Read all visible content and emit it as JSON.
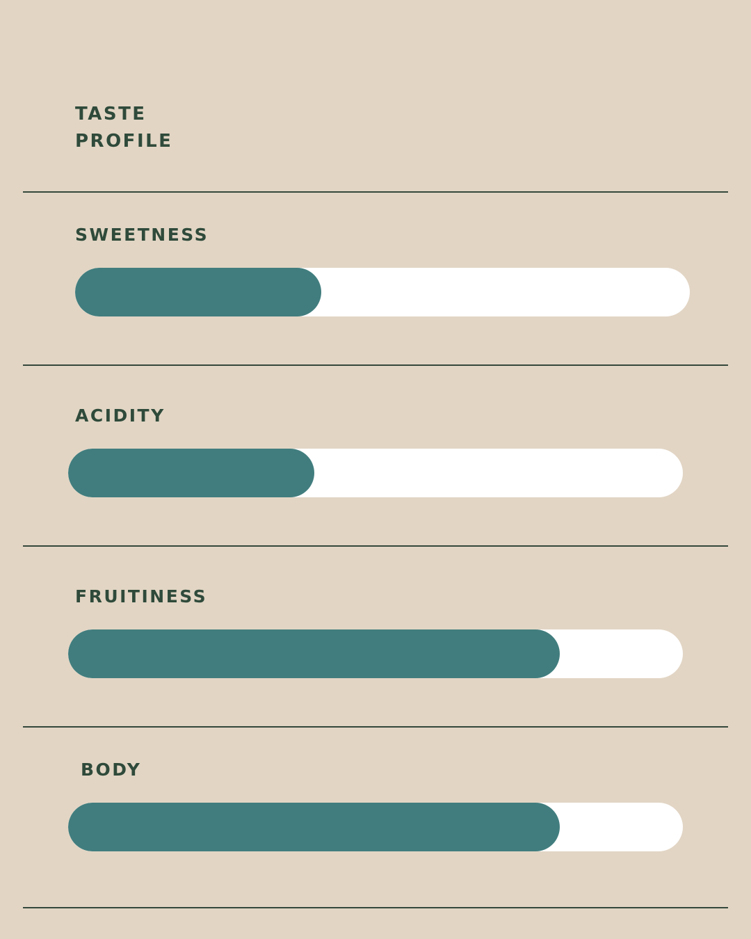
{
  "title": {
    "line1": "TASTE",
    "line2": "PROFILE"
  },
  "colors": {
    "background": "#e2d5c4",
    "fill": "#417d7e",
    "track": "#ffffff",
    "text": "#2f4a3a"
  },
  "attributes": [
    {
      "label": "SWEETNESS",
      "level": 0.4
    },
    {
      "label": "ACIDITY",
      "level": 0.4
    },
    {
      "label": "FRUITINESS",
      "level": 0.8
    },
    {
      "label": "BODY",
      "level": 0.8
    }
  ]
}
